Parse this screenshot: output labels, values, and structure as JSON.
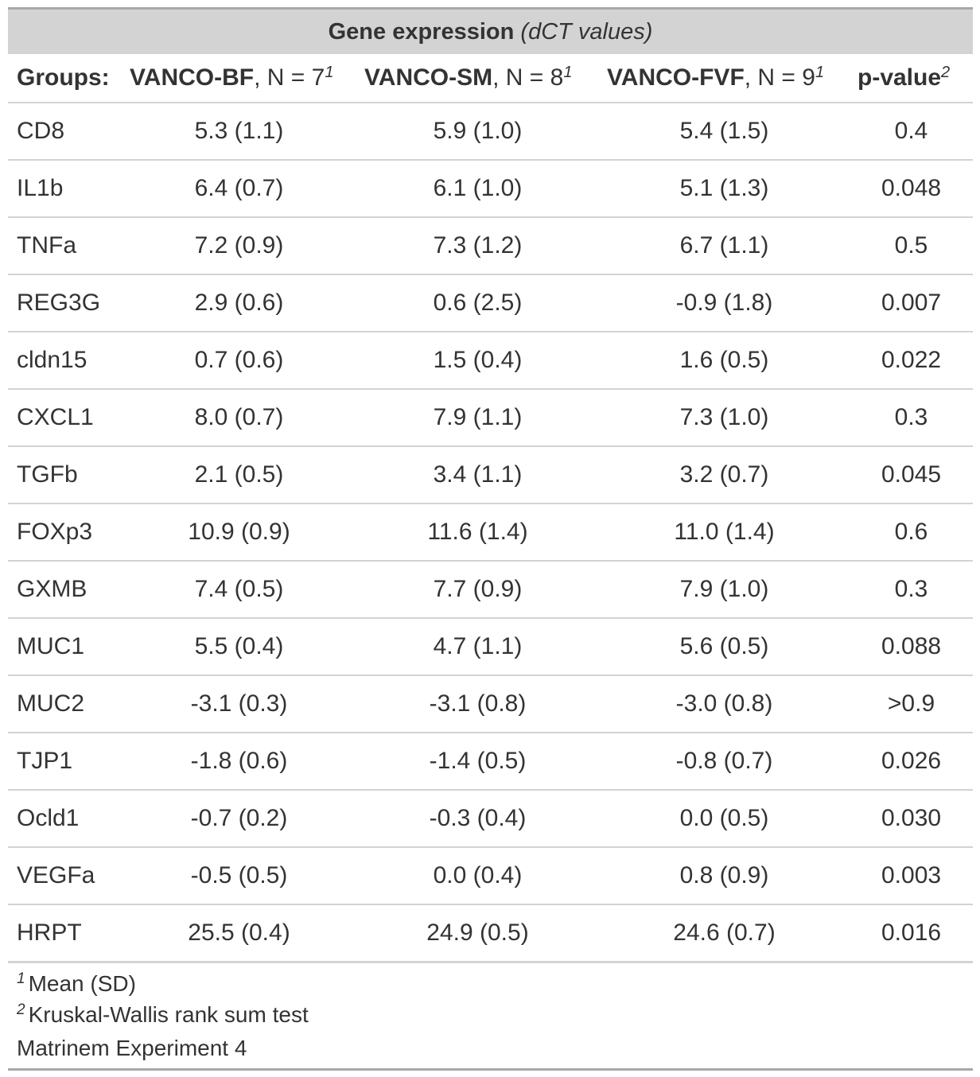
{
  "title": {
    "main": "Gene expression",
    "sub": "(dCT values)"
  },
  "header": {
    "stub_label": "Groups:",
    "columns": [
      {
        "name": "VANCO-BF",
        "n": ", N = 7",
        "mark": "1"
      },
      {
        "name": "VANCO-SM",
        "n": ", N = 8",
        "mark": "1"
      },
      {
        "name": "VANCO-FVF",
        "n": ", N = 9",
        "mark": "1"
      }
    ],
    "pvalue": {
      "name": "p-value",
      "mark": "2"
    }
  },
  "rows": [
    {
      "gene": "CD8",
      "bf": "5.3 (1.1)",
      "sm": "5.9 (1.0)",
      "fvf": "5.4 (1.5)",
      "p": "0.4"
    },
    {
      "gene": "IL1b",
      "bf": "6.4 (0.7)",
      "sm": "6.1 (1.0)",
      "fvf": "5.1 (1.3)",
      "p": "0.048"
    },
    {
      "gene": "TNFa",
      "bf": "7.2 (0.9)",
      "sm": "7.3 (1.2)",
      "fvf": "6.7 (1.1)",
      "p": "0.5"
    },
    {
      "gene": "REG3G",
      "bf": "2.9 (0.6)",
      "sm": "0.6 (2.5)",
      "fvf": "-0.9 (1.8)",
      "p": "0.007"
    },
    {
      "gene": "cldn15",
      "bf": "0.7 (0.6)",
      "sm": "1.5 (0.4)",
      "fvf": "1.6 (0.5)",
      "p": "0.022"
    },
    {
      "gene": "CXCL1",
      "bf": "8.0 (0.7)",
      "sm": "7.9 (1.1)",
      "fvf": "7.3 (1.0)",
      "p": "0.3"
    },
    {
      "gene": "TGFb",
      "bf": "2.1 (0.5)",
      "sm": "3.4 (1.1)",
      "fvf": "3.2 (0.7)",
      "p": "0.045"
    },
    {
      "gene": "FOXp3",
      "bf": "10.9 (0.9)",
      "sm": "11.6 (1.4)",
      "fvf": "11.0 (1.4)",
      "p": "0.6"
    },
    {
      "gene": "GXMB",
      "bf": "7.4 (0.5)",
      "sm": "7.7 (0.9)",
      "fvf": "7.9 (1.0)",
      "p": "0.3"
    },
    {
      "gene": "MUC1",
      "bf": "5.5 (0.4)",
      "sm": "4.7 (1.1)",
      "fvf": "5.6 (0.5)",
      "p": "0.088"
    },
    {
      "gene": "MUC2",
      "bf": "-3.1 (0.3)",
      "sm": "-3.1 (0.8)",
      "fvf": "-3.0 (0.8)",
      "p": ">0.9"
    },
    {
      "gene": "TJP1",
      "bf": "-1.8 (0.6)",
      "sm": "-1.4 (0.5)",
      "fvf": "-0.8 (0.7)",
      "p": "0.026"
    },
    {
      "gene": "Ocld1",
      "bf": "-0.7 (0.2)",
      "sm": "-0.3 (0.4)",
      "fvf": "0.0 (0.5)",
      "p": "0.030"
    },
    {
      "gene": "VEGFa",
      "bf": "-0.5 (0.5)",
      "sm": "0.0 (0.4)",
      "fvf": "0.8 (0.9)",
      "p": "0.003"
    },
    {
      "gene": "HRPT",
      "bf": "25.5 (0.4)",
      "sm": "24.9 (0.5)",
      "fvf": "24.6 (0.7)",
      "p": "0.016"
    }
  ],
  "footnotes": [
    {
      "mark": "1",
      "text": "Mean (SD)"
    },
    {
      "mark": "2",
      "text": "Kruskal-Wallis rank sum test"
    }
  ],
  "source_note": "Matrinem Experiment 4",
  "colors": {
    "header_bg": "#d3d3d3",
    "rule": "#d3d3d3",
    "outer_rule": "#a8a8a8",
    "text": "#333333"
  }
}
